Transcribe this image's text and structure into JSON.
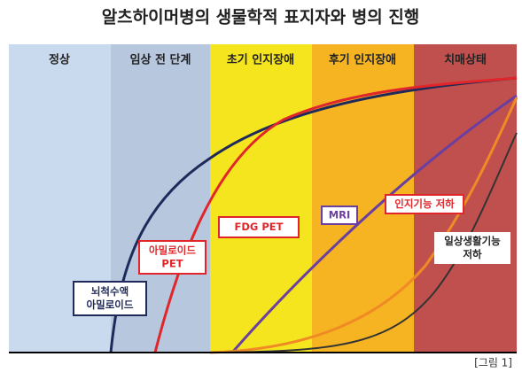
{
  "title": "알츠하이머병의 생물학적 표지자와 병의 진행",
  "stages": [
    "정상",
    "임상 전 단계",
    "초기 인지장애",
    "후기 인지장애",
    "치매상태"
  ],
  "markers": [
    {
      "lines": [
        "뇌척수액",
        "아밀로이드"
      ]
    },
    {
      "lines": [
        "아밀로이드",
        "PET"
      ]
    },
    {
      "lines": [
        "FDG PET"
      ]
    },
    {
      "lines": [
        "MRI"
      ]
    },
    {
      "lines": [
        "인지기능 저하"
      ]
    },
    {
      "lines": [
        "일상생활기능",
        "저하"
      ]
    }
  ],
  "caption": "[그림 1]"
}
